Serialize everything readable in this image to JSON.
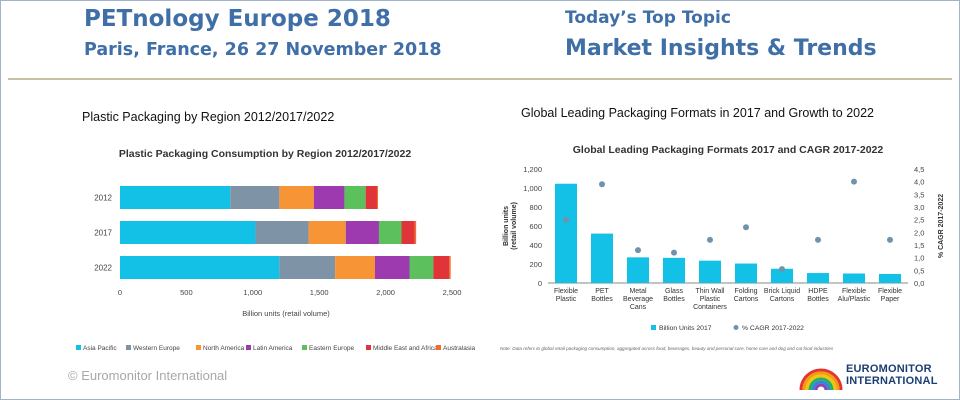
{
  "header": {
    "event_title": "PETnology Europe 2018",
    "event_subtitle": "Paris, France, 26 27 November 2018",
    "topic_label": "Today’s Top Topic",
    "topic_title": "Market Insights & Trends"
  },
  "left_section_title": "Plastic Packaging by Region 2012/2017/2022",
  "right_section_title": "Global Leading Packaging Formats in 2017 and Growth to 2022",
  "footer": {
    "copyright": "© Euromonitor International",
    "logo_line1": "EUROMONITOR",
    "logo_line2": "INTERNATIONAL"
  },
  "chart_data": [
    {
      "type": "bar",
      "orientation": "horizontal",
      "stacked": true,
      "title": "Plastic Packaging Consumption by Region 2012/2017/2022",
      "xlabel": "Billion units (retail volume)",
      "ylabel": "",
      "xlim": [
        0,
        2500
      ],
      "xticks": [
        "0",
        "500",
        "1,000",
        "1,500",
        "2,000",
        "2,500"
      ],
      "xtick_values": [
        0,
        500,
        1000,
        1500,
        2000,
        2500
      ],
      "categories": [
        "2012",
        "2017",
        "2022"
      ],
      "legend_position": "bottom",
      "grid": false,
      "series": [
        {
          "name": "Asia Pacific",
          "color": "#14c1e6",
          "values": [
            830,
            1020,
            1200
          ]
        },
        {
          "name": "Western Europe",
          "color": "#7f93a6",
          "values": [
            370,
            400,
            420
          ]
        },
        {
          "name": "North America",
          "color": "#f79435",
          "values": [
            260,
            280,
            300
          ]
        },
        {
          "name": "Latin America",
          "color": "#9e3ab0",
          "values": [
            230,
            250,
            260
          ]
        },
        {
          "name": "Eastern Europe",
          "color": "#5cc15c",
          "values": [
            160,
            170,
            180
          ]
        },
        {
          "name": "Middle East and Africa",
          "color": "#e0333a",
          "values": [
            85,
            100,
            120
          ]
        },
        {
          "name": "Australasia",
          "color": "#ef6f2a",
          "values": [
            8,
            10,
            10
          ]
        }
      ]
    },
    {
      "type": "bar",
      "title": "Global Leading Packaging Formats 2017 and CAGR 2017-2022",
      "ylabel": "Billion units\n(retail volume)",
      "y2label": "% CAGR 2017-2022",
      "ylim": [
        0,
        1200
      ],
      "y2lim": [
        0,
        4.5
      ],
      "yticks": [
        "0",
        "200",
        "400",
        "600",
        "800",
        "1,000",
        "1,200"
      ],
      "ytick_values": [
        0,
        200,
        400,
        600,
        800,
        1000,
        1200
      ],
      "y2ticks": [
        "0,0",
        "0,5",
        "1,0",
        "1,5",
        "2,0",
        "2,5",
        "3,0",
        "3,5",
        "4,0",
        "4,5"
      ],
      "y2tick_values": [
        0,
        0.5,
        1.0,
        1.5,
        2.0,
        2.5,
        3.0,
        3.5,
        4.0,
        4.5
      ],
      "categories": [
        [
          "Flexible",
          "Plastic"
        ],
        [
          "PET",
          "Bottles"
        ],
        [
          "Metal",
          "Beverage",
          "Cans"
        ],
        [
          "Glass",
          "Bottles"
        ],
        [
          "Thin Wall",
          "Plastic",
          "Containers"
        ],
        [
          "Folding",
          "Cartons"
        ],
        [
          "Brick Liquid",
          "Cartons"
        ],
        [
          "HDPE",
          "Bottles"
        ],
        [
          "Flexible",
          "Alu/Plastic"
        ],
        [
          "Flexible",
          "Paper"
        ]
      ],
      "legend_position": "bottom",
      "grid": false,
      "series": [
        {
          "name": "Billion Units 2017",
          "kind": "bar",
          "axis": "left",
          "color": "#14c1e6",
          "values": [
            1045,
            520,
            270,
            265,
            235,
            205,
            150,
            105,
            100,
            95
          ]
        },
        {
          "name": "% CAGR 2017-2022",
          "kind": "scatter",
          "axis": "right",
          "color": "#6f93ad",
          "values": [
            2.5,
            3.9,
            1.3,
            1.2,
            1.7,
            2.2,
            0.55,
            1.7,
            4.0,
            1.7
          ]
        }
      ],
      "note": "Note: Data refers to global retail packaging consumption, aggregated across food, beverages, beauty and personal care, home care and dog and cat food industries"
    }
  ]
}
